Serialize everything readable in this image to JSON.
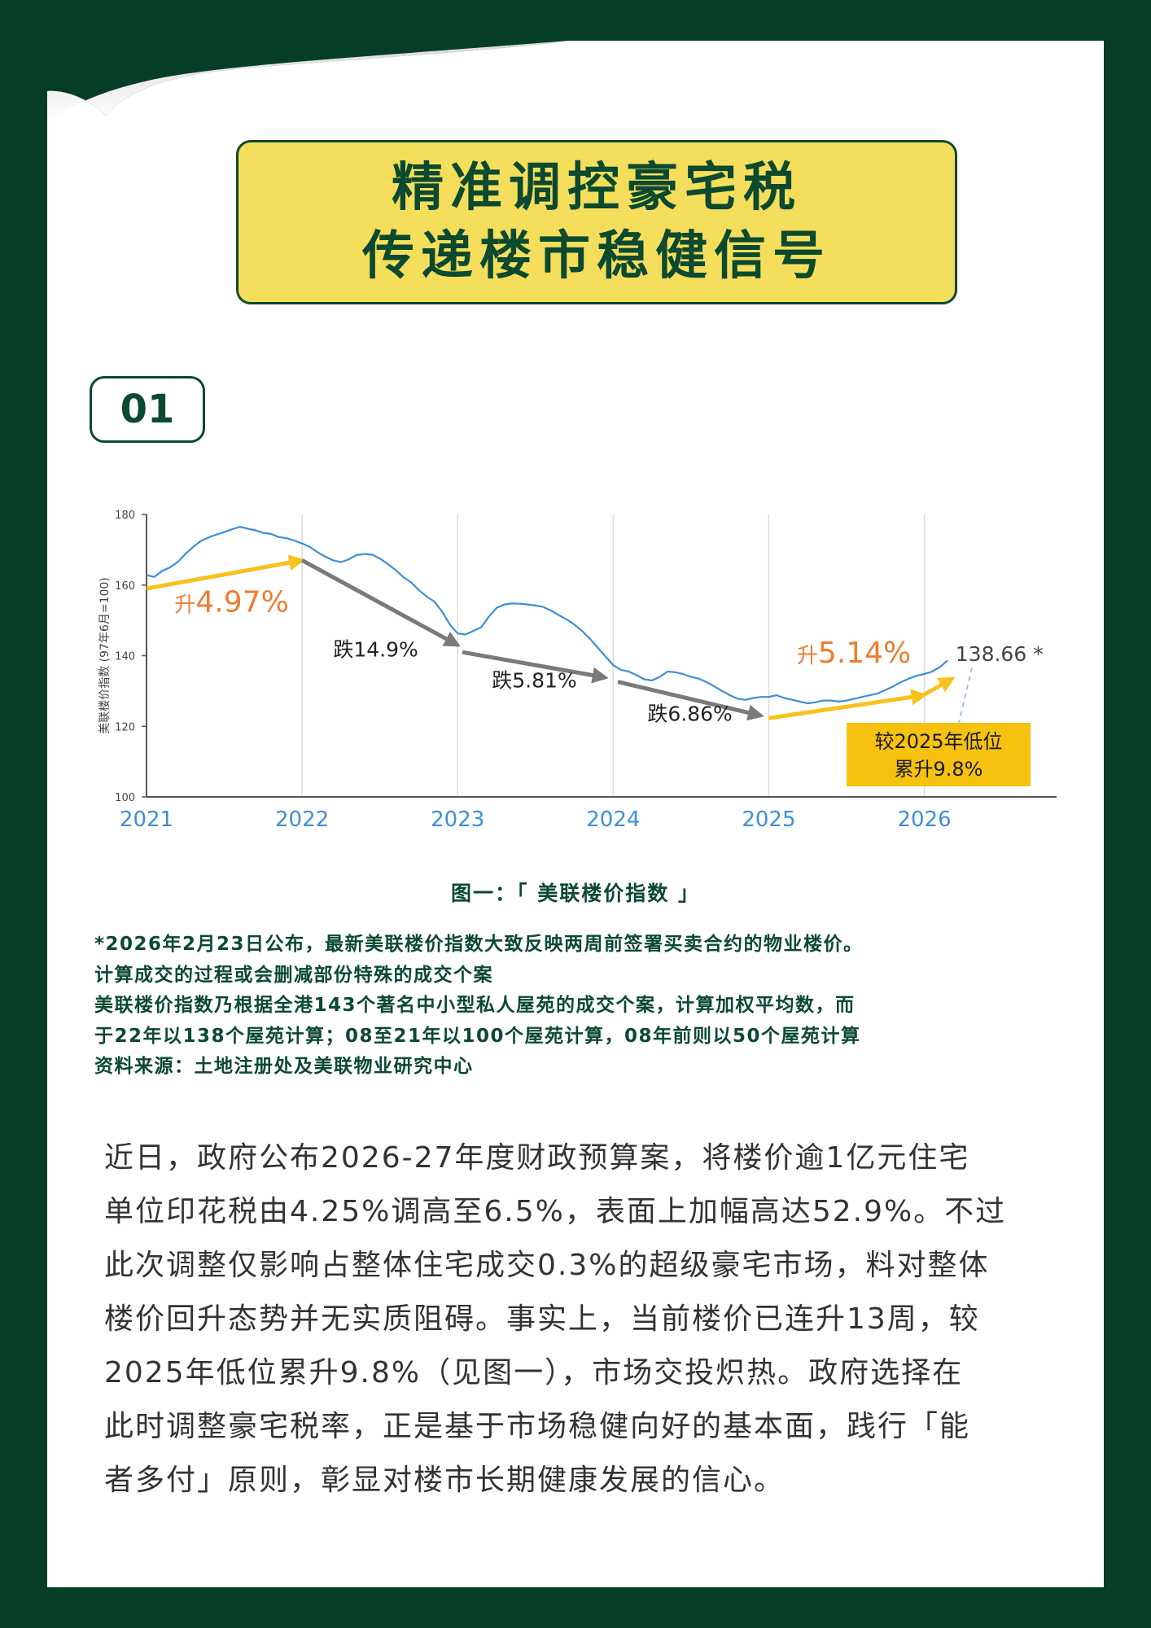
{
  "title": {
    "line1": "精准调控豪宅税",
    "line2": "传递楼市稳健信号"
  },
  "section_number": "01",
  "colors": {
    "background": "#063d26",
    "accent_yellow": "#f5de5c",
    "dark_green": "#0b4a2f",
    "line_blue": "#3d8fd6",
    "rise_orange": "#ee7d2e",
    "arrow_grey": "#7a7a7a",
    "arrow_yellow": "#f7c21c",
    "callout_yellow": "#f6c20f"
  },
  "chart_data": {
    "type": "line",
    "ylabel": "美联楼价指数 (97年6月=100)",
    "ylim": [
      100,
      180
    ],
    "yticks": [
      "100",
      "120",
      "140",
      "160",
      "180"
    ],
    "xlim": [
      2021,
      2026.85
    ],
    "xticks": [
      "2021",
      "2022",
      "2023",
      "2024",
      "2025",
      "2026"
    ],
    "grid": "vertical at each year",
    "series": [
      {
        "points": [
          [
            2021.0,
            162.8
          ],
          [
            2021.05,
            162.3
          ],
          [
            2021.1,
            164.0
          ],
          [
            2021.15,
            165.0
          ],
          [
            2021.2,
            166.5
          ],
          [
            2021.25,
            168.8
          ],
          [
            2021.3,
            170.8
          ],
          [
            2021.35,
            172.5
          ],
          [
            2021.4,
            173.5
          ],
          [
            2021.45,
            174.3
          ],
          [
            2021.5,
            175.0
          ],
          [
            2021.55,
            175.8
          ],
          [
            2021.6,
            176.5
          ],
          [
            2021.65,
            176.0
          ],
          [
            2021.7,
            175.5
          ],
          [
            2021.75,
            174.8
          ],
          [
            2021.8,
            174.5
          ],
          [
            2021.85,
            173.6
          ],
          [
            2021.9,
            173.3
          ],
          [
            2021.95,
            172.6
          ],
          [
            2022.0,
            171.8
          ],
          [
            2022.05,
            170.8
          ],
          [
            2022.1,
            169.3
          ],
          [
            2022.15,
            168.0
          ],
          [
            2022.2,
            167.0
          ],
          [
            2022.25,
            166.5
          ],
          [
            2022.3,
            167.3
          ],
          [
            2022.35,
            168.5
          ],
          [
            2022.4,
            168.8
          ],
          [
            2022.45,
            168.6
          ],
          [
            2022.5,
            167.5
          ],
          [
            2022.55,
            166.0
          ],
          [
            2022.6,
            164.3
          ],
          [
            2022.65,
            162.3
          ],
          [
            2022.7,
            160.8
          ],
          [
            2022.75,
            158.6
          ],
          [
            2022.8,
            156.8
          ],
          [
            2022.85,
            155.3
          ],
          [
            2022.9,
            152.5
          ],
          [
            2022.95,
            148.8
          ],
          [
            2023.0,
            146.3
          ],
          [
            2023.05,
            146.0
          ],
          [
            2023.1,
            147.0
          ],
          [
            2023.15,
            148.0
          ],
          [
            2023.2,
            151.0
          ],
          [
            2023.25,
            153.5
          ],
          [
            2023.3,
            154.5
          ],
          [
            2023.35,
            154.8
          ],
          [
            2023.4,
            154.7
          ],
          [
            2023.45,
            154.5
          ],
          [
            2023.5,
            154.2
          ],
          [
            2023.55,
            153.8
          ],
          [
            2023.6,
            152.8
          ],
          [
            2023.65,
            151.5
          ],
          [
            2023.7,
            150.3
          ],
          [
            2023.75,
            148.8
          ],
          [
            2023.8,
            147.0
          ],
          [
            2023.85,
            144.8
          ],
          [
            2023.9,
            142.3
          ],
          [
            2023.95,
            139.8
          ],
          [
            2024.0,
            137.3
          ],
          [
            2024.05,
            136.0
          ],
          [
            2024.1,
            135.5
          ],
          [
            2024.15,
            134.5
          ],
          [
            2024.2,
            133.3
          ],
          [
            2024.25,
            133.0
          ],
          [
            2024.3,
            134.0
          ],
          [
            2024.35,
            135.5
          ],
          [
            2024.4,
            135.3
          ],
          [
            2024.45,
            134.8
          ],
          [
            2024.5,
            134.0
          ],
          [
            2024.55,
            133.5
          ],
          [
            2024.6,
            132.5
          ],
          [
            2024.65,
            131.3
          ],
          [
            2024.7,
            130.0
          ],
          [
            2024.75,
            128.8
          ],
          [
            2024.8,
            127.8
          ],
          [
            2024.85,
            127.5
          ],
          [
            2024.9,
            128.0
          ],
          [
            2024.95,
            128.3
          ],
          [
            2025.0,
            128.3
          ],
          [
            2025.05,
            128.8
          ],
          [
            2025.1,
            128.0
          ],
          [
            2025.15,
            127.5
          ],
          [
            2025.2,
            127.0
          ],
          [
            2025.25,
            126.5
          ],
          [
            2025.3,
            126.8
          ],
          [
            2025.35,
            127.3
          ],
          [
            2025.4,
            127.3
          ],
          [
            2025.45,
            127.0
          ],
          [
            2025.5,
            127.3
          ],
          [
            2025.55,
            127.8
          ],
          [
            2025.6,
            128.3
          ],
          [
            2025.65,
            128.8
          ],
          [
            2025.7,
            129.3
          ],
          [
            2025.75,
            130.3
          ],
          [
            2025.8,
            131.3
          ],
          [
            2025.85,
            132.5
          ],
          [
            2025.9,
            133.5
          ],
          [
            2025.95,
            134.3
          ],
          [
            2026.0,
            134.8
          ],
          [
            2026.05,
            135.5
          ],
          [
            2026.1,
            136.8
          ],
          [
            2026.15,
            138.66
          ]
        ]
      }
    ],
    "arrows": [
      {
        "from": [
          2021.0,
          159.0
        ],
        "to": [
          2022.0,
          167.0
        ],
        "color": "yellow"
      },
      {
        "from": [
          2022.0,
          167.0
        ],
        "to": [
          2023.0,
          143.0
        ],
        "color": "grey"
      },
      {
        "from": [
          2023.03,
          141.0
        ],
        "to": [
          2023.95,
          133.8
        ],
        "color": "grey"
      },
      {
        "from": [
          2024.03,
          132.6
        ],
        "to": [
          2024.95,
          123.0
        ],
        "color": "grey"
      },
      {
        "from": [
          2025.0,
          122.3
        ],
        "to": [
          2026.0,
          128.8
        ],
        "color": "yellow"
      },
      {
        "from": [
          2026.0,
          129.0
        ],
        "to": [
          2026.18,
          133.5
        ],
        "color": "yellow"
      }
    ],
    "annotations": {
      "rise1": {
        "prefix": "升",
        "value": "4.97%",
        "at": [
          2021.18,
          152.5
        ]
      },
      "fall1": {
        "text": "跌14.9%",
        "at": [
          2022.2,
          139.8
        ]
      },
      "fall2": {
        "text": "跌5.81%",
        "at": [
          2023.22,
          131.0
        ]
      },
      "fall3": {
        "text": "跌6.86%",
        "at": [
          2024.22,
          121.5
        ]
      },
      "rise2": {
        "prefix": "升",
        "value": "5.14%",
        "at": [
          2025.18,
          138.0
        ]
      },
      "last_value": {
        "text": "138.66 *",
        "at": [
          2026.2,
          138.5
        ]
      },
      "callout": {
        "line1": "较2025年低位",
        "line2": "累升9.8%"
      }
    }
  },
  "caption": "图一：「 美联楼价指数 」",
  "notes": [
    "*2026年2月23日公布，最新美联楼价指数大致反映两周前签署买卖合约的物业楼价。",
    "计算成交的过程或会删减部份特殊的成交个案",
    "美联楼价指数乃根据全港143个著名中小型私人屋苑的成交个案，计算加权平均数，而",
    "于22年以138个屋苑计算；08至21年以100个屋苑计算，08年前则以50个屋苑计算",
    "资料来源：土地注册处及美联物业研究中心"
  ],
  "body": [
    "近日，政府公布2026-27年度财政预算案，将楼价逾1亿元住宅",
    "单位印花税由4.25%调高至6.5%，表面上加幅高达52.9%。不过",
    "此次调整仅影响占整体住宅成交0.3%的超级豪宅市场，料对整体",
    "楼价回升态势并无实质阻碍。事实上，当前楼价已连升13周，较",
    "2025年低位累升9.8%（见图一），市场交投炽热。政府选择在",
    "此时调整豪宅税率，正是基于市场稳健向好的基本面，践行「能",
    "者多付」原则，彰显对楼市长期健康发展的信心。"
  ]
}
